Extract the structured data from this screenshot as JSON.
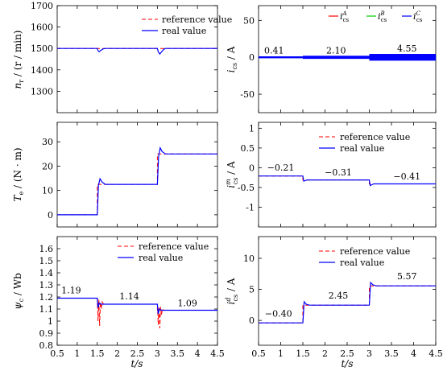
{
  "colors": {
    "reference": "#ff0000",
    "real": "#0000ff",
    "green": "#00cc00"
  },
  "chart_data": [
    {
      "type": "line",
      "ylabel": "n_r / (r / min)",
      "xlim": [
        0.5,
        4.5
      ],
      "ylim": [
        1200,
        1700
      ],
      "yticks": [
        "1300",
        "1400",
        "1500",
        "1600",
        "1700"
      ],
      "xticks": [],
      "legend": {
        "position": "top-right",
        "entries": [
          "reference value",
          "real value"
        ]
      },
      "series": [
        {
          "name": "reference value",
          "style": "dashed",
          "color": "#ff0000",
          "points": [
            [
              0.5,
              1500
            ],
            [
              4.5,
              1500
            ]
          ]
        },
        {
          "name": "real value",
          "color": "#0000ff",
          "points": [
            [
              0.5,
              1500
            ],
            [
              1.5,
              1500
            ],
            [
              1.52,
              1490
            ],
            [
              1.55,
              1485
            ],
            [
              1.6,
              1492
            ],
            [
              1.65,
              1498
            ],
            [
              1.7,
              1500
            ],
            [
              3.0,
              1500
            ],
            [
              3.02,
              1485
            ],
            [
              3.06,
              1474
            ],
            [
              3.1,
              1483
            ],
            [
              3.15,
              1494
            ],
            [
              3.2,
              1500
            ],
            [
              4.5,
              1500
            ]
          ]
        }
      ],
      "annotations": []
    },
    {
      "type": "line",
      "ylabel": "i_cs / A",
      "xlim": [
        0.5,
        4.5
      ],
      "ylim": [
        -75,
        70
      ],
      "yticks": [
        "-50",
        "0",
        "50"
      ],
      "xticks": [],
      "legend": {
        "position": "top-right",
        "entries": [
          "i_cs^A",
          "i_cs^B",
          "i_cs^C"
        ]
      },
      "bands": [
        {
          "x": [
            0.5,
            1.5
          ],
          "amplitude": 0.41,
          "color": "#0000ff"
        },
        {
          "x": [
            1.5,
            3.0
          ],
          "amplitude": 2.1,
          "color": "#0000ff"
        },
        {
          "x": [
            3.0,
            4.5
          ],
          "amplitude": 4.55,
          "color": "#0000ff"
        }
      ],
      "annotations": [
        {
          "text": "0.41",
          "x": 0.85,
          "y": 5
        },
        {
          "text": "2.10",
          "x": 2.25,
          "y": 5
        },
        {
          "text": "4.55",
          "x": 3.85,
          "y": 8
        }
      ]
    },
    {
      "type": "line",
      "ylabel": "T_e / (N·m)",
      "xlim": [
        0.5,
        4.5
      ],
      "ylim": [
        -5,
        38
      ],
      "yticks": [
        "0",
        "10",
        "20",
        "30"
      ],
      "xticks": [],
      "legend": null,
      "series": [
        {
          "name": "reference value",
          "style": "dashed",
          "color": "#ff0000",
          "points": [
            [
              0.5,
              0
            ],
            [
              1.5,
              0
            ],
            [
              1.5,
              12.5
            ],
            [
              3.0,
              12.5
            ],
            [
              3.0,
              25
            ],
            [
              4.5,
              25
            ]
          ]
        },
        {
          "name": "real value",
          "color": "#0000ff",
          "points": [
            [
              0.5,
              0
            ],
            [
              1.5,
              0
            ],
            [
              1.53,
              12
            ],
            [
              1.57,
              14.8
            ],
            [
              1.62,
              13.5
            ],
            [
              1.7,
              12.5
            ],
            [
              3.0,
              12.5
            ],
            [
              3.03,
              24
            ],
            [
              3.07,
              27.5
            ],
            [
              3.12,
              26
            ],
            [
              3.2,
              25
            ],
            [
              4.5,
              25
            ]
          ]
        }
      ],
      "annotations": []
    },
    {
      "type": "line",
      "ylabel": "i_cs^m / A",
      "xlim": [
        0.5,
        4.5
      ],
      "ylim": [
        -1.5,
        1.15
      ],
      "yticks": [
        "-1",
        "-0.5",
        "0",
        "0.5",
        "1"
      ],
      "xticks": [],
      "legend": {
        "position": "top-right",
        "entries": [
          "reference value",
          "real value"
        ]
      },
      "series": [
        {
          "name": "reference value",
          "style": "dashed",
          "color": "#ff0000",
          "points": [
            [
              0.5,
              -0.21
            ],
            [
              1.5,
              -0.21
            ],
            [
              1.5,
              -0.31
            ],
            [
              3.0,
              -0.31
            ],
            [
              3.0,
              -0.41
            ],
            [
              4.5,
              -0.41
            ]
          ]
        },
        {
          "name": "real value",
          "color": "#0000ff",
          "points": [
            [
              0.5,
              -0.21
            ],
            [
              1.5,
              -0.21
            ],
            [
              1.52,
              -0.34
            ],
            [
              1.6,
              -0.31
            ],
            [
              3.0,
              -0.31
            ],
            [
              3.02,
              -0.45
            ],
            [
              3.1,
              -0.41
            ],
            [
              4.5,
              -0.41
            ]
          ]
        }
      ],
      "annotations": [
        {
          "text": "−0.21",
          "x": 1.0,
          "y": -0.07
        },
        {
          "text": "−0.31",
          "x": 2.3,
          "y": -0.2
        },
        {
          "text": "−0.41",
          "x": 3.85,
          "y": -0.3
        }
      ]
    },
    {
      "type": "line",
      "ylabel": "ψ_c / Wb",
      "xlabel": "t/s",
      "xlim": [
        0.5,
        4.5
      ],
      "ylim": [
        0.8,
        1.7
      ],
      "yticks": [
        "0.8",
        "0.9",
        "1",
        "1.1",
        "1.2",
        "1.3",
        "1.4",
        "1.5",
        "1.6"
      ],
      "xticks": [
        "0.5",
        "1",
        "1.5",
        "2",
        "2.5",
        "3",
        "3.5",
        "4",
        "4.5"
      ],
      "legend": {
        "position": "top-right",
        "entries": [
          "reference value",
          "real value"
        ]
      },
      "series": [
        {
          "name": "reference value",
          "style": "dashed",
          "color": "#ff0000",
          "points": [
            [
              0.5,
              1.19
            ],
            [
              1.5,
              1.19
            ],
            [
              1.5,
              1.14
            ],
            [
              3.0,
              1.14
            ],
            [
              3.0,
              1.09
            ],
            [
              4.5,
              1.09
            ]
          ]
        },
        {
          "name": "reference value transient",
          "style": "dashed",
          "color": "#ff0000",
          "points": [
            [
              1.5,
              1.19
            ],
            [
              1.52,
              1.0
            ],
            [
              1.54,
              1.18
            ],
            [
              1.56,
              0.96
            ],
            [
              1.58,
              1.16
            ],
            [
              1.6,
              1.1
            ],
            [
              1.62,
              1.16
            ],
            [
              1.66,
              1.14
            ],
            [
              3.0,
              1.14
            ],
            [
              3.02,
              0.97
            ],
            [
              3.04,
              1.12
            ],
            [
              3.06,
              0.94
            ],
            [
              3.08,
              1.12
            ],
            [
              3.1,
              1.05
            ],
            [
              3.13,
              1.1
            ],
            [
              3.16,
              1.09
            ]
          ]
        },
        {
          "name": "real value",
          "color": "#0000ff",
          "points": [
            [
              0.5,
              1.19
            ],
            [
              1.5,
              1.19
            ],
            [
              1.52,
              1.11
            ],
            [
              1.55,
              1.15
            ],
            [
              1.6,
              1.14
            ],
            [
              3.0,
              1.14
            ],
            [
              3.02,
              1.06
            ],
            [
              3.05,
              1.1
            ],
            [
              3.1,
              1.09
            ],
            [
              4.5,
              1.09
            ]
          ]
        }
      ],
      "annotations": [
        {
          "text": "1.19",
          "x": 0.85,
          "y": 1.23
        },
        {
          "text": "1.14",
          "x": 2.3,
          "y": 1.18
        },
        {
          "text": "1.09",
          "x": 3.75,
          "y": 1.125
        }
      ]
    },
    {
      "type": "line",
      "ylabel": "i_cs^d / A",
      "xlabel": "t/s",
      "xlim": [
        0.5,
        4.5
      ],
      "ylim": [
        -4,
        13.5
      ],
      "yticks": [
        "0",
        "5",
        "10"
      ],
      "xticks": [
        "0.5",
        "1",
        "1.5",
        "2",
        "2.5",
        "3",
        "3.5",
        "4",
        "4.5"
      ],
      "legend": {
        "position": "top-right",
        "entries": [
          "reference value",
          "real value"
        ]
      },
      "series": [
        {
          "name": "reference value",
          "style": "dashed",
          "color": "#ff0000",
          "points": [
            [
              0.5,
              -0.4
            ],
            [
              1.5,
              -0.4
            ],
            [
              1.5,
              2.45
            ],
            [
              3.0,
              2.45
            ],
            [
              3.0,
              5.57
            ],
            [
              4.5,
              5.57
            ]
          ]
        },
        {
          "name": "real value",
          "color": "#0000ff",
          "points": [
            [
              0.5,
              -0.4
            ],
            [
              1.5,
              -0.4
            ],
            [
              1.53,
              3.0
            ],
            [
              1.58,
              2.6
            ],
            [
              1.65,
              2.45
            ],
            [
              3.0,
              2.45
            ],
            [
              3.03,
              6.1
            ],
            [
              3.08,
              5.75
            ],
            [
              3.15,
              5.57
            ],
            [
              4.5,
              5.57
            ]
          ]
        }
      ],
      "annotations": [
        {
          "text": "−0.40",
          "x": 0.95,
          "y": 0.6
        },
        {
          "text": "2.45",
          "x": 2.3,
          "y": 3.5
        },
        {
          "text": "5.57",
          "x": 3.85,
          "y": 6.6
        }
      ]
    }
  ]
}
